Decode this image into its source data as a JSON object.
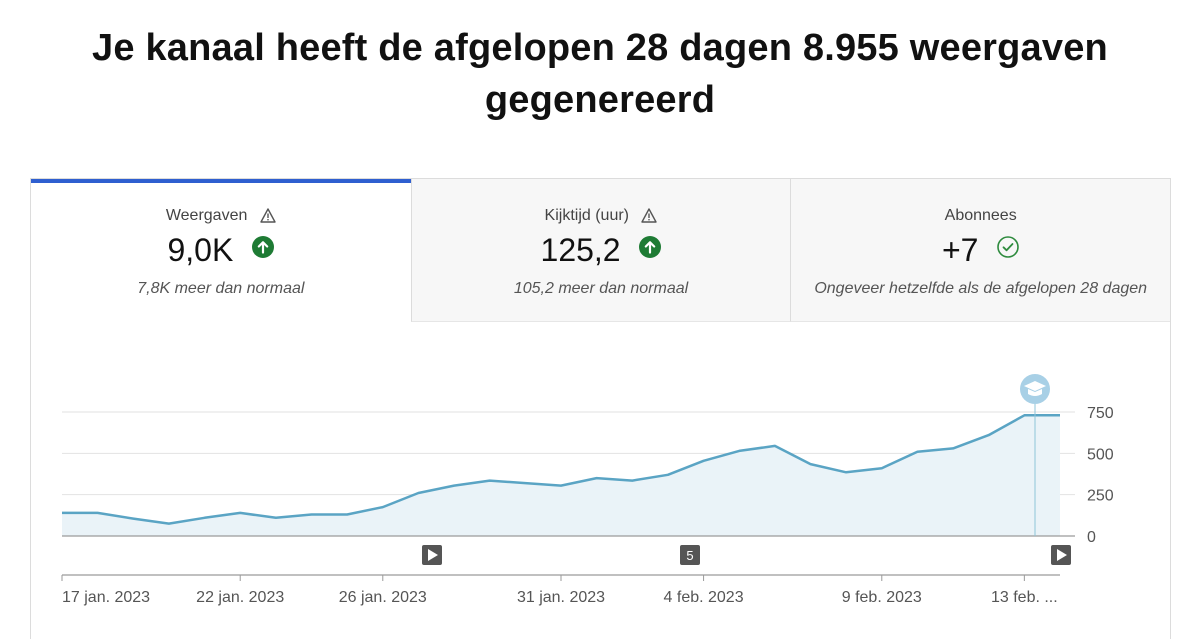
{
  "headline": "Je kanaal heeft de afgelopen 28 dagen 8.955 weergaven gegenereerd",
  "tabs": [
    {
      "label": "Weergaven",
      "value": "9,0K",
      "note": "7,8K meer dan normaal",
      "status": "up",
      "warning": true,
      "active": true
    },
    {
      "label": "Kijktijd (uur)",
      "value": "125,2",
      "note": "105,2 meer dan normaal",
      "status": "up",
      "warning": true,
      "active": false
    },
    {
      "label": "Abonnees",
      "value": "+7",
      "note": "Ongeveer hetzelfde als de afgelopen 28 dagen",
      "status": "check",
      "warning": false,
      "active": false
    }
  ],
  "colors": {
    "accent": "#2f5fd0",
    "line": "#5aa4c4",
    "area": "#eaf3f8",
    "up": "#1e7b34",
    "check": "#2e8b3e"
  },
  "chart_data": {
    "type": "area",
    "x": [
      "2023-01-17",
      "2023-01-18",
      "2023-01-19",
      "2023-01-20",
      "2023-01-21",
      "2023-01-22",
      "2023-01-23",
      "2023-01-24",
      "2023-01-25",
      "2023-01-26",
      "2023-01-27",
      "2023-01-28",
      "2023-01-29",
      "2023-01-30",
      "2023-01-31",
      "2023-02-01",
      "2023-02-02",
      "2023-02-03",
      "2023-02-04",
      "2023-02-05",
      "2023-02-06",
      "2023-02-07",
      "2023-02-08",
      "2023-02-09",
      "2023-02-10",
      "2023-02-11",
      "2023-02-12",
      "2023-02-13",
      "2023-02-14"
    ],
    "series": [
      {
        "values": [
          140,
          140,
          105,
          75,
          110,
          140,
          110,
          130,
          130,
          175,
          260,
          305,
          335,
          320,
          305,
          350,
          335,
          370,
          455,
          515,
          545,
          435,
          385,
          410,
          510,
          530,
          610,
          730,
          730
        ]
      }
    ],
    "ylim": [
      0,
      750
    ],
    "yticks": [
      "0",
      "250",
      "500",
      "750"
    ],
    "xtick_labels": [
      "17 jan. 2023",
      "22 jan. 2023",
      "26 jan. 2023",
      "31 jan. 2023",
      "4 feb. 2023",
      "9 feb. 2023",
      "13 feb. ..."
    ],
    "grid": true,
    "markers": [
      {
        "icon": "play-icon"
      },
      {
        "label": "5"
      },
      {
        "icon": "play-icon"
      }
    ],
    "annotation_icon": "graduation-cap-icon"
  }
}
